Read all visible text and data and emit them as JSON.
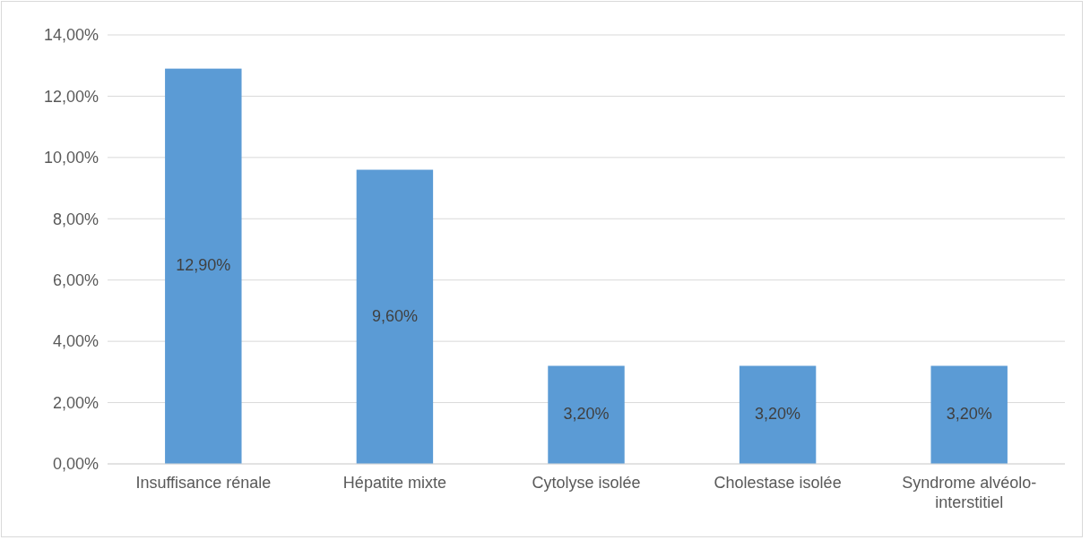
{
  "chart_data": {
    "type": "bar",
    "categories": [
      "Insuffisance rénale",
      "Hépatite mixte",
      "Cytolyse isolée",
      "Cholestase isolée",
      "Syndrome alvéolo-interstitiel"
    ],
    "values": [
      12.9,
      9.6,
      3.2,
      3.2,
      3.2
    ],
    "value_labels": [
      "12,90%",
      "9,60%",
      "3,20%",
      "3,20%",
      "3,20%"
    ],
    "color": "#5b9bd5",
    "ylim": [
      0,
      14
    ],
    "yticks": [
      {
        "value": 0,
        "label": "0,00%"
      },
      {
        "value": 2,
        "label": "2,00%"
      },
      {
        "value": 4,
        "label": "4,00%"
      },
      {
        "value": 6,
        "label": "6,00%"
      },
      {
        "value": 8,
        "label": "8,00%"
      },
      {
        "value": 10,
        "label": "10,00%"
      },
      {
        "value": 12,
        "label": "12,00%"
      },
      {
        "value": 14,
        "label": "14,00%"
      }
    ],
    "grid": "y"
  }
}
